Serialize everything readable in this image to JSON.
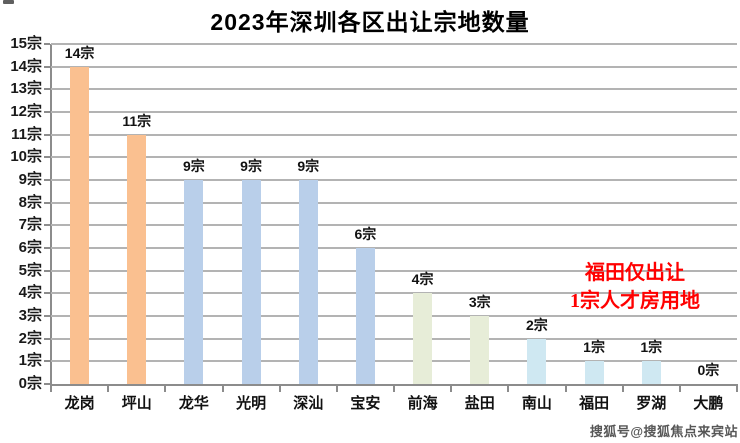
{
  "title": "2023年深圳各区出让宗地数量",
  "watermark": "搜狐号@搜狐焦点来宾站",
  "chart_data": {
    "type": "bar",
    "title": "2023年深圳各区出让宗地数量",
    "categories": [
      "龙岗",
      "坪山",
      "龙华",
      "光明",
      "深汕",
      "宝安",
      "前海",
      "盐田",
      "南山",
      "福田",
      "罗湖",
      "大鹏"
    ],
    "values": [
      14,
      11,
      9,
      9,
      9,
      6,
      4,
      3,
      2,
      1,
      1,
      0
    ],
    "data_labels": [
      "14宗",
      "11宗",
      "9宗",
      "9宗",
      "9宗",
      "6宗",
      "4宗",
      "3宗",
      "2宗",
      "1宗",
      "1宗",
      "0宗"
    ],
    "unit": "宗",
    "xlabel": "",
    "ylabel": "",
    "ylim": [
      0,
      15
    ],
    "y_tick_step": 1,
    "y_tick_labels": [
      "0宗",
      "1宗",
      "2宗",
      "3宗",
      "4宗",
      "5宗",
      "6宗",
      "7宗",
      "8宗",
      "9宗",
      "10宗",
      "11宗",
      "12宗",
      "13宗",
      "14宗",
      "15宗"
    ],
    "grid": true,
    "legend": "none",
    "bar_colors": [
      "#FAC090",
      "#FAC090",
      "#B9CFEA",
      "#B9CFEA",
      "#B9CFEA",
      "#B9CFEA",
      "#E7EDD8",
      "#E7EDD8",
      "#CFE8F2",
      "#CFE8F2",
      "#CFE8F2",
      "#CFE8F2"
    ],
    "annotation": {
      "lines": [
        "福田仅出让",
        "1宗人才房用地"
      ],
      "color": "#FF0000"
    }
  }
}
